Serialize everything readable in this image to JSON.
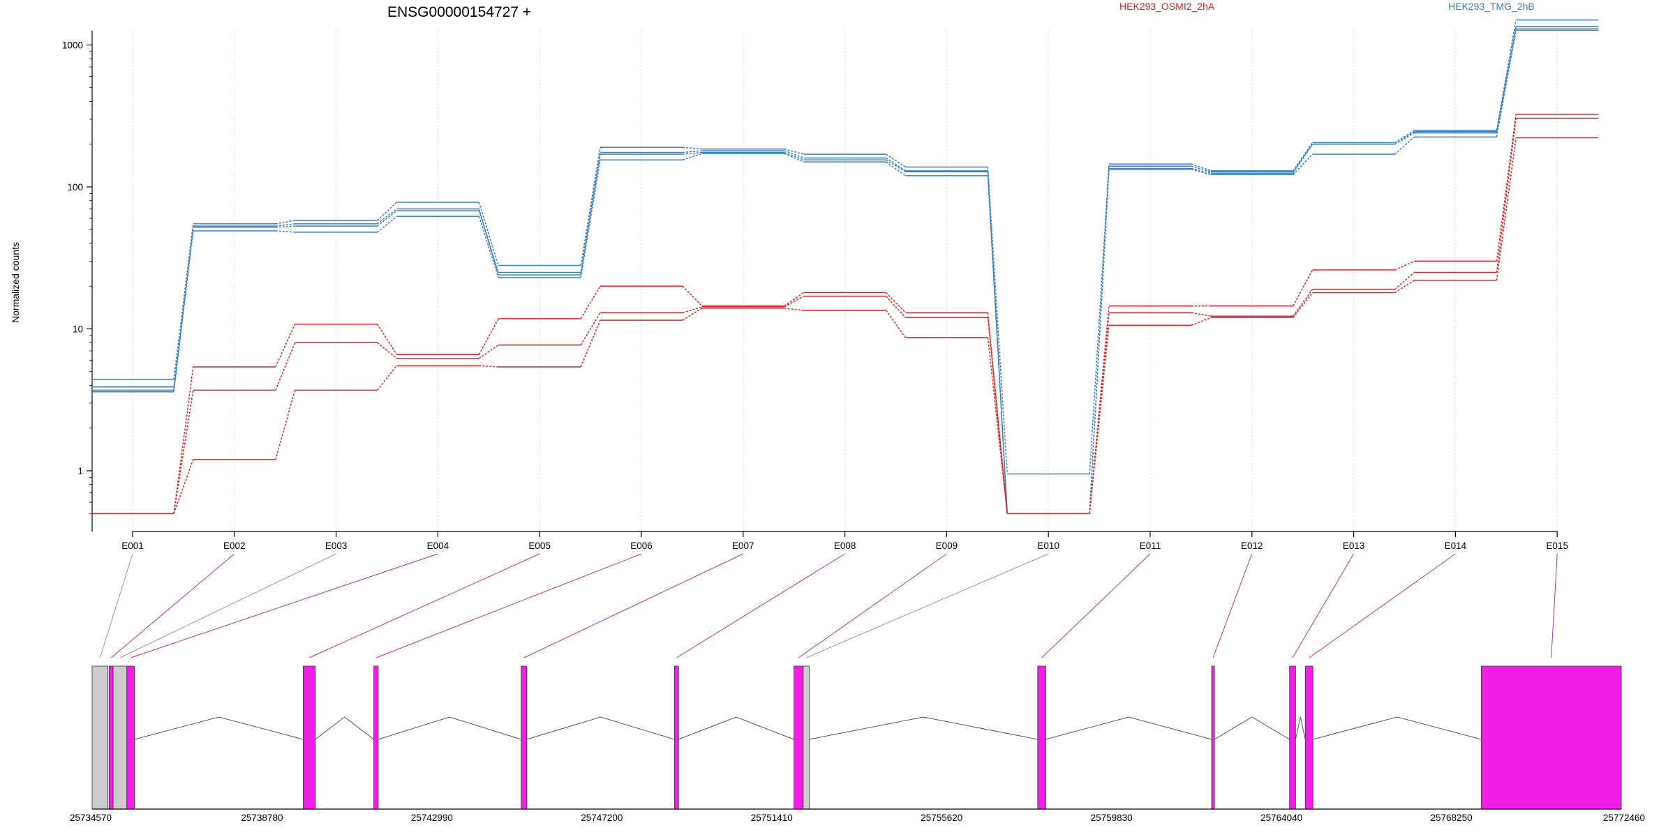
{
  "chart_data": {
    "type": "line",
    "title": "ENSG00000154727 +",
    "ylabel": "Normalized counts",
    "yscale": "log",
    "ylim": [
      0.5,
      2000
    ],
    "yticks": [
      1,
      10,
      100,
      1000
    ],
    "categories": [
      "E001",
      "E002",
      "E003",
      "E004",
      "E005",
      "E006",
      "E007",
      "E008",
      "E009",
      "E010",
      "E011",
      "E012",
      "E013",
      "E014",
      "E015"
    ],
    "grid": "vertical dotted at each exon bin",
    "legend_position": "top-right",
    "legend": [
      {
        "label": "HEK293_OSMI2_2hA",
        "color": "#d62728"
      },
      {
        "label": "HEK293_TMG_2hB",
        "color": "#3a7fbf"
      }
    ],
    "series": [
      {
        "group": "HEK293_TMG_2hB",
        "color": "#3a7fbf",
        "values": [
          4.4,
          55,
          58,
          78,
          28,
          190,
          185,
          170,
          138,
          0.95,
          145,
          130,
          205,
          250,
          1500
        ]
      },
      {
        "group": "HEK293_TMG_2hB",
        "color": "#3a7fbf",
        "values": [
          3.9,
          53,
          55,
          70,
          25,
          175,
          180,
          160,
          130,
          0.5,
          140,
          128,
          200,
          245,
          1350
        ]
      },
      {
        "group": "HEK293_TMG_2hB",
        "color": "#3a7fbf",
        "values": [
          3.7,
          52,
          53,
          68,
          24,
          170,
          175,
          155,
          128,
          0.5,
          135,
          125,
          200,
          240,
          1300
        ]
      },
      {
        "group": "HEK293_TMG_2hB",
        "color": "#3a7fbf",
        "values": [
          3.6,
          49,
          48,
          62,
          23,
          155,
          172,
          150,
          120,
          0.5,
          133,
          122,
          170,
          225,
          1270
        ]
      },
      {
        "group": "HEK293_OSMI2_2hA",
        "color": "#d62728",
        "values": [
          0.5,
          5.4,
          10.8,
          6.6,
          11.8,
          20,
          14.5,
          18,
          13,
          0.5,
          14.5,
          14.5,
          26,
          30,
          325
        ]
      },
      {
        "group": "HEK293_OSMI2_2hA",
        "color": "#d62728",
        "values": [
          0.5,
          3.7,
          8,
          6.2,
          7.7,
          13,
          14.3,
          17,
          12,
          0.5,
          13,
          12.3,
          19,
          25,
          305
        ]
      },
      {
        "group": "HEK293_OSMI2_2hA",
        "color": "#d62728",
        "values": [
          0.5,
          1.2,
          3.7,
          5.5,
          5.4,
          11.5,
          14,
          13.5,
          8.7,
          0.5,
          10.6,
          12,
          18,
          22,
          222
        ]
      }
    ],
    "gene_model": {
      "xlabel_ticks": [
        25734570,
        25738780,
        25742990,
        25747200,
        25751410,
        25755620,
        25759830,
        25764040,
        25768250,
        25772460
      ],
      "xlim": [
        25734570,
        25772460
      ],
      "colors": {
        "exon": "#f21ee6",
        "noncounted": "#cccccc",
        "connector_highlight": "#b8329e",
        "connector_plain": "#999999"
      },
      "exon_bins": [
        {
          "id": "E001",
          "start": 25734570,
          "end": 25734960,
          "counted": false
        },
        {
          "id": "E002",
          "start": 25734990,
          "end": 25735090,
          "counted": true
        },
        {
          "id": "E003",
          "start": 25735090,
          "end": 25735430,
          "counted": false
        },
        {
          "id": "E004",
          "start": 25735430,
          "end": 25735620,
          "counted": true
        },
        {
          "id": "E005",
          "start": 25739800,
          "end": 25740100,
          "counted": true
        },
        {
          "id": "E006",
          "start": 25741550,
          "end": 25741660,
          "counted": true
        },
        {
          "id": "E007",
          "start": 25745200,
          "end": 25745340,
          "counted": true
        },
        {
          "id": "E008",
          "start": 25749000,
          "end": 25749100,
          "counted": true
        },
        {
          "id": "E009",
          "start": 25751960,
          "end": 25752190,
          "counted": true
        },
        {
          "id": "E010",
          "start": 25752190,
          "end": 25752340,
          "counted": false
        },
        {
          "id": "E011",
          "start": 25758000,
          "end": 25758200,
          "counted": true
        },
        {
          "id": "E012",
          "start": 25762310,
          "end": 25762380,
          "counted": true
        },
        {
          "id": "E013",
          "start": 25764240,
          "end": 25764390,
          "counted": true
        },
        {
          "id": "E014",
          "start": 25764630,
          "end": 25764820,
          "counted": true
        },
        {
          "id": "E015",
          "start": 25768990,
          "end": 25772460,
          "counted": true
        }
      ],
      "introns": [
        [
          25735620,
          25739800
        ],
        [
          25740100,
          25741550
        ],
        [
          25741660,
          25745200
        ],
        [
          25745340,
          25749000
        ],
        [
          25749100,
          25751960
        ],
        [
          25752340,
          25758000
        ],
        [
          25758200,
          25762310
        ],
        [
          25762380,
          25764240
        ],
        [
          25764390,
          25764630
        ],
        [
          25764820,
          25768990
        ]
      ]
    }
  }
}
